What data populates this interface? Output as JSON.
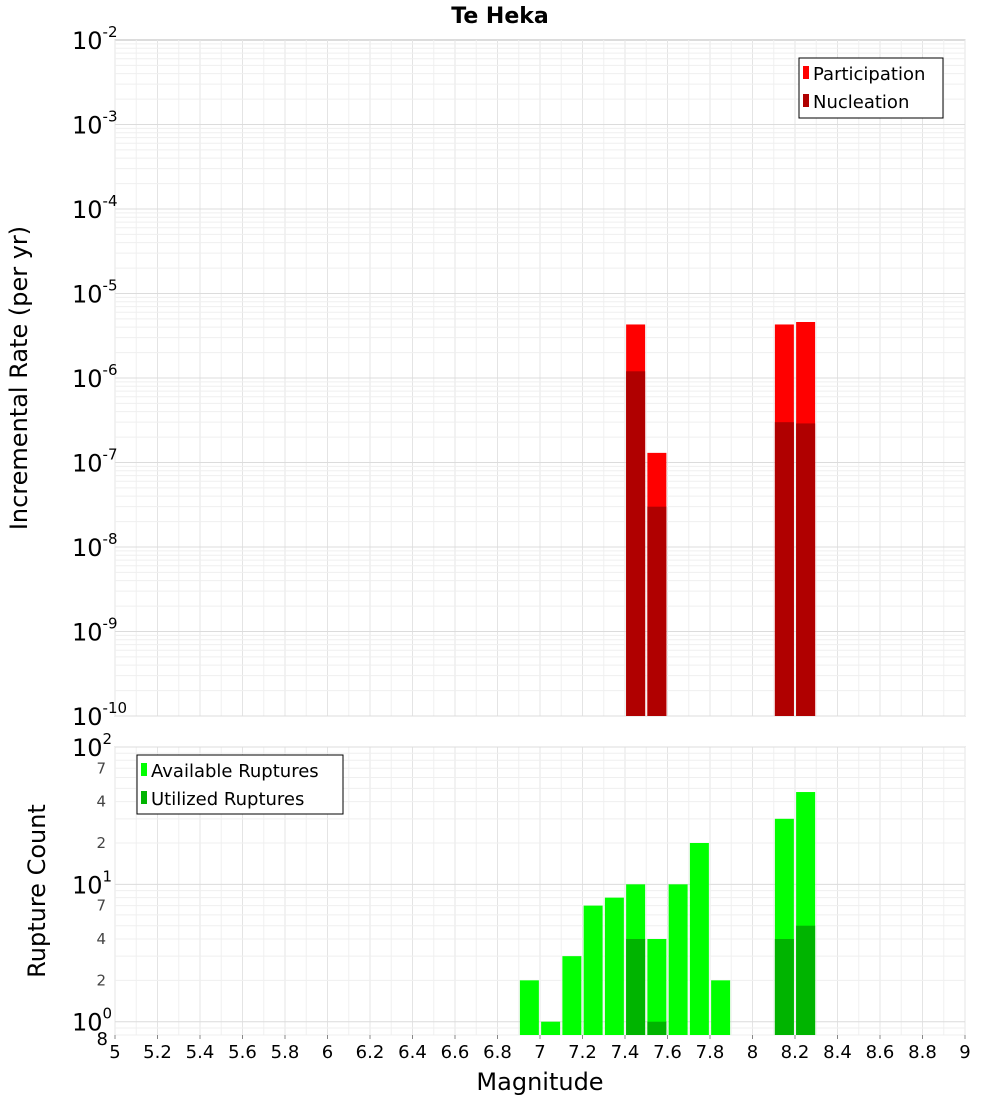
{
  "chart_data": [
    {
      "type": "bar",
      "title": "Te Heka",
      "xlabel": "",
      "ylabel": "Incremental Rate (per yr)",
      "yscale": "log",
      "ylim": [
        1e-10,
        0.01
      ],
      "xlim": [
        5,
        9
      ],
      "grid": true,
      "legend_position": "top-right",
      "y_tick_bases": [
        "10",
        "10",
        "10",
        "10",
        "10",
        "10",
        "10",
        "10",
        "10"
      ],
      "y_tick_exps": [
        "-2",
        "-3",
        "-4",
        "-5",
        "-6",
        "-7",
        "-8",
        "-9",
        "-10"
      ],
      "series": [
        {
          "name": "Participation",
          "color": "#ff0000",
          "x": [
            7.45,
            7.55,
            8.15,
            8.25
          ],
          "values": [
            4.3e-06,
            1.3e-07,
            4.3e-06,
            4.6e-06
          ]
        },
        {
          "name": "Nucleation",
          "color": "#b00000",
          "x": [
            7.45,
            7.55,
            8.15,
            8.25
          ],
          "values": [
            1.2e-06,
            3e-08,
            3e-07,
            2.9e-07
          ]
        }
      ]
    },
    {
      "type": "bar",
      "title": "",
      "xlabel": "Magnitude",
      "ylabel": "Rupture Count",
      "yscale": "log",
      "ylim": [
        0.8,
        100
      ],
      "xlim": [
        5,
        9
      ],
      "grid": true,
      "legend_position": "top-left",
      "x_ticks": [
        "5",
        "5.2",
        "5.4",
        "5.6",
        "5.8",
        "6",
        "6.2",
        "6.4",
        "6.6",
        "6.8",
        "7",
        "7.2",
        "7.4",
        "7.6",
        "7.8",
        "8",
        "8.2",
        "8.4",
        "8.6",
        "8.8",
        "9"
      ],
      "y_major_bases": [
        "10",
        "10",
        "10"
      ],
      "y_major_exps": [
        "2",
        "1",
        "0"
      ],
      "y_minor_labels": [
        "7",
        "4",
        "2",
        "7",
        "4",
        "2",
        "8"
      ],
      "series": [
        {
          "name": "Available Ruptures",
          "color": "#00ff00",
          "x": [
            6.95,
            7.05,
            7.15,
            7.25,
            7.35,
            7.45,
            7.55,
            7.65,
            7.75,
            7.85,
            8.15,
            8.25
          ],
          "values": [
            2,
            1,
            3,
            7,
            8,
            10,
            4,
            10,
            20,
            2,
            30,
            47
          ]
        },
        {
          "name": "Utilized Ruptures",
          "color": "#00b400",
          "x": [
            7.45,
            7.55,
            8.15,
            8.25
          ],
          "values": [
            4,
            1,
            4,
            5
          ]
        }
      ]
    }
  ]
}
